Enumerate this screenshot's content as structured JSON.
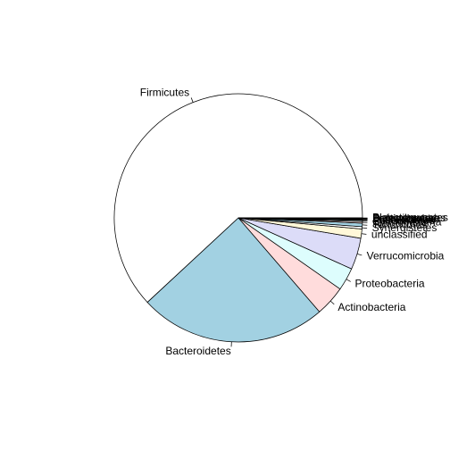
{
  "chart_data": {
    "type": "pie",
    "title": "",
    "direction": "counterclockwise",
    "start_angle_deg": 0,
    "slices": [
      {
        "label": "Firmicutes",
        "value": 61.84,
        "color": "#ffffff"
      },
      {
        "label": "Bacteroidetes",
        "value": 24.4,
        "color": "#a2d1e2"
      },
      {
        "label": "Actinobacteria",
        "value": 3.95,
        "color": "#ffdcdc"
      },
      {
        "label": "Proteobacteria",
        "value": 2.97,
        "color": "#ddfdfd"
      },
      {
        "label": "Verrucomicrobia",
        "value": 4.1,
        "color": "#dcdcf8"
      },
      {
        "label": "unclassified",
        "value": 1.2,
        "color": "#fff8d9"
      },
      {
        "label": "Synergistetes",
        "value": 0.3,
        "color": "#ffffff"
      },
      {
        "label": "Tenericutes",
        "value": 0.45,
        "color": "#a2d1e2"
      },
      {
        "label": "Cyanobacteria",
        "value": 0.2,
        "color": "#ffdcdc"
      },
      {
        "label": "Spirochaetes",
        "value": 0.15,
        "color": "#ddfdfd"
      },
      {
        "label": "Fusobacteria",
        "value": 0.1,
        "color": "#dcdcf8"
      },
      {
        "label": "Elusimicrobia",
        "value": 0.08,
        "color": "#fff8d9"
      },
      {
        "label": "Lentisphaerae",
        "value": 0.06,
        "color": "#ffffff"
      },
      {
        "label": "Deferribacteres",
        "value": 0.05,
        "color": "#a2d1e2"
      },
      {
        "label": "Planctomycetes",
        "value": 0.04,
        "color": "#ffdcdc"
      }
    ]
  }
}
